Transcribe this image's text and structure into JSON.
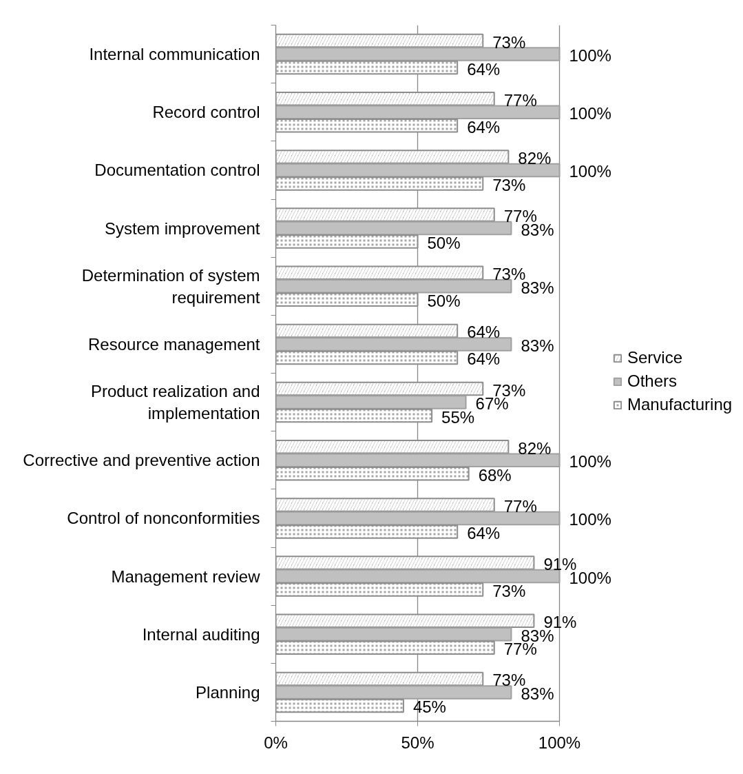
{
  "chart_data": {
    "type": "bar",
    "orientation": "horizontal",
    "categories": [
      "Internal communication",
      "Record control",
      "Documentation control",
      "System improvement",
      "Determination of system requirement",
      "Resource management",
      "Product realization and implementation",
      "Corrective and preventive action",
      "Control of nonconformities",
      "Management review",
      "Internal auditing",
      "Planning"
    ],
    "series": [
      {
        "name": "Service",
        "color": "#b3b3b3",
        "values": [
          73,
          77,
          82,
          77,
          73,
          64,
          73,
          82,
          77,
          91,
          91,
          73
        ],
        "value_labels": [
          "73%",
          "77%",
          "82%",
          "77%",
          "73%",
          "64%",
          "73%",
          "82%",
          "77%",
          "91%",
          "91%",
          "73%"
        ]
      },
      {
        "name": "Others",
        "color": "#c0c0c0",
        "values": [
          100,
          100,
          100,
          83,
          83,
          83,
          67,
          100,
          100,
          100,
          83,
          83
        ],
        "value_labels": [
          "100%",
          "100%",
          "100%",
          "83%",
          "83%",
          "83%",
          "67%",
          "100%",
          "100%",
          "100%",
          "83%",
          "83%"
        ]
      },
      {
        "name": "Manufacturing",
        "color": "#a6a6a6",
        "values": [
          64,
          64,
          73,
          50,
          50,
          64,
          55,
          68,
          64,
          73,
          77,
          45
        ],
        "value_labels": [
          "64%",
          "64%",
          "73%",
          "50%",
          "50%",
          "64%",
          "55%",
          "68%",
          "64%",
          "73%",
          "77%",
          "45%"
        ]
      }
    ],
    "xlim": [
      0,
      100
    ],
    "xticks": [
      {
        "value": 0,
        "label": "0%"
      },
      {
        "value": 50,
        "label": "50%"
      },
      {
        "value": 100,
        "label": "100%"
      }
    ],
    "grid": "x",
    "legend": "right"
  }
}
